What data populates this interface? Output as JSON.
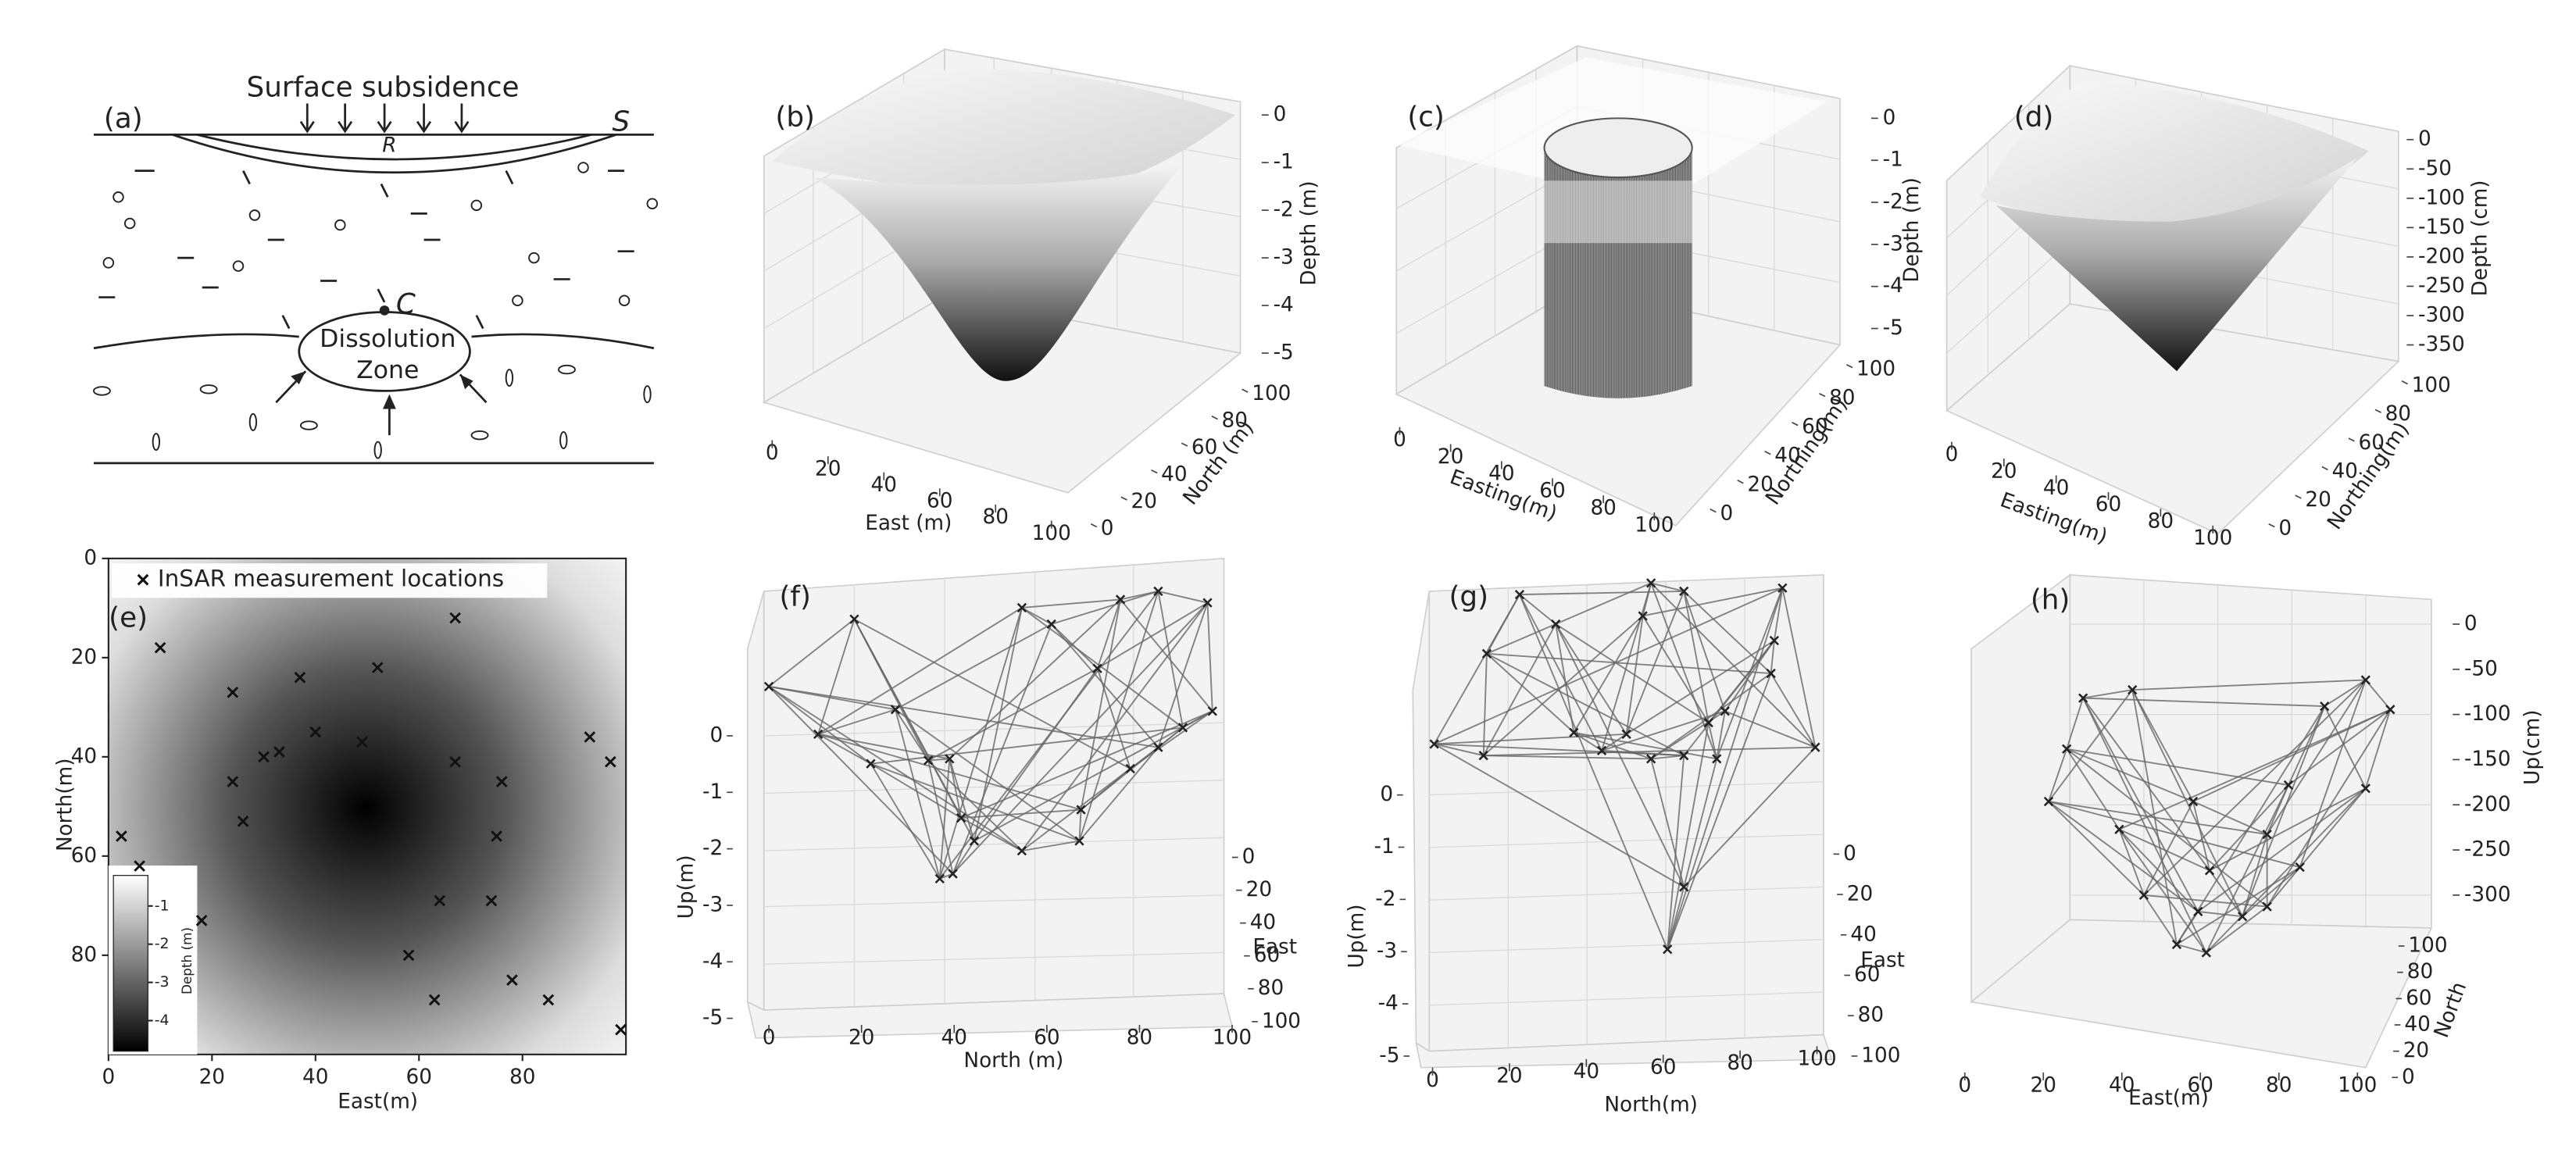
{
  "a": {
    "label": "(a)",
    "heading": "Surface subsidence",
    "surface_label": "S",
    "subsidence_label": "R",
    "cavity_label": "C",
    "zone": [
      "Dissolution",
      "Zone"
    ]
  },
  "b": {
    "label": "(b)",
    "z_axis": {
      "title": "Depth (m)",
      "ticks": [
        0,
        -1,
        -2,
        -3,
        -4,
        -5
      ]
    },
    "x_axis": {
      "title": "East (m)",
      "ticks": [
        0,
        20,
        40,
        60,
        80,
        100
      ]
    },
    "y_axis": {
      "title": "North (m)",
      "ticks": [
        0,
        20,
        40,
        60,
        80,
        100
      ]
    }
  },
  "c": {
    "label": "(c)",
    "z_axis": {
      "title": "Depth (m)",
      "ticks": [
        0,
        -1,
        -2,
        -3,
        -4,
        -5
      ]
    },
    "x_axis": {
      "title": "Easting(m)",
      "ticks": [
        0,
        20,
        40,
        60,
        80,
        100
      ]
    },
    "y_axis": {
      "title": "Northing(m)",
      "ticks": [
        0,
        20,
        40,
        60,
        80,
        100
      ]
    }
  },
  "d": {
    "label": "(d)",
    "z_axis": {
      "title": "Depth (cm)",
      "ticks": [
        0,
        -50,
        -100,
        -150,
        -200,
        -250,
        -300,
        -350
      ]
    },
    "x_axis": {
      "title": "Easting(m)",
      "ticks": [
        0,
        20,
        40,
        60,
        80,
        100
      ]
    },
    "y_axis": {
      "title": "Northing(m)",
      "ticks": [
        0,
        20,
        40,
        60,
        80,
        100
      ]
    }
  },
  "e": {
    "label": "(e)",
    "legend": "InSAR measurement locations",
    "x_axis": {
      "title": "East(m)",
      "ticks": [
        0,
        20,
        40,
        60,
        80
      ],
      "lim": [
        0,
        100
      ]
    },
    "y_axis": {
      "title": "North(m)",
      "ticks": [
        0,
        20,
        40,
        60,
        80
      ],
      "lim": [
        0,
        100
      ]
    },
    "colorbar": {
      "title": "Depth (m)",
      "ticks": [
        -1,
        -2,
        -3,
        -4
      ],
      "lim": [
        -4.8,
        -0.2
      ]
    },
    "points": {
      "east": [
        67,
        10,
        52,
        37,
        24,
        40,
        49,
        33,
        30,
        67,
        93,
        97,
        24,
        76,
        26,
        2.5,
        75,
        6,
        18,
        64,
        74,
        58,
        78,
        63,
        85,
        99
      ],
      "north": [
        12,
        18,
        22,
        24,
        27,
        35,
        37,
        39,
        40,
        41,
        36,
        41,
        45,
        45,
        53,
        56,
        56,
        62,
        73,
        69,
        69,
        80,
        85,
        89,
        89,
        95
      ]
    }
  },
  "f": {
    "label": "(f)",
    "z_axis": {
      "title": "Up(m)",
      "ticks": [
        0,
        -1,
        -2,
        -3,
        -4,
        -5
      ]
    },
    "x_axis": {
      "title": "North (m)",
      "ticks": [
        0,
        20,
        40,
        60,
        80,
        100
      ]
    },
    "y_axis": {
      "title": "East",
      "ticks": [
        0,
        20,
        40,
        60,
        80,
        100
      ]
    }
  },
  "g": {
    "label": "(g)",
    "z_axis": {
      "title": "Up(m)",
      "ticks": [
        0,
        -1,
        -2,
        -3,
        -4,
        -5
      ]
    },
    "x_axis": {
      "title": "North(m)",
      "ticks": [
        0,
        20,
        40,
        60,
        80,
        100
      ]
    },
    "y_axis": {
      "title": "East",
      "ticks": [
        0,
        20,
        40,
        60,
        80,
        100
      ]
    }
  },
  "h": {
    "label": "(h)",
    "z_axis": {
      "title": "Up(cm)",
      "ticks": [
        0,
        -50,
        -100,
        -150,
        -200,
        -250,
        -300
      ]
    },
    "x_axis": {
      "title": "East(m)",
      "ticks": [
        0,
        20,
        40,
        60,
        80,
        100
      ]
    },
    "y_axis": {
      "title": "North",
      "ticks": [
        0,
        20,
        40,
        60,
        80,
        100
      ]
    }
  }
}
